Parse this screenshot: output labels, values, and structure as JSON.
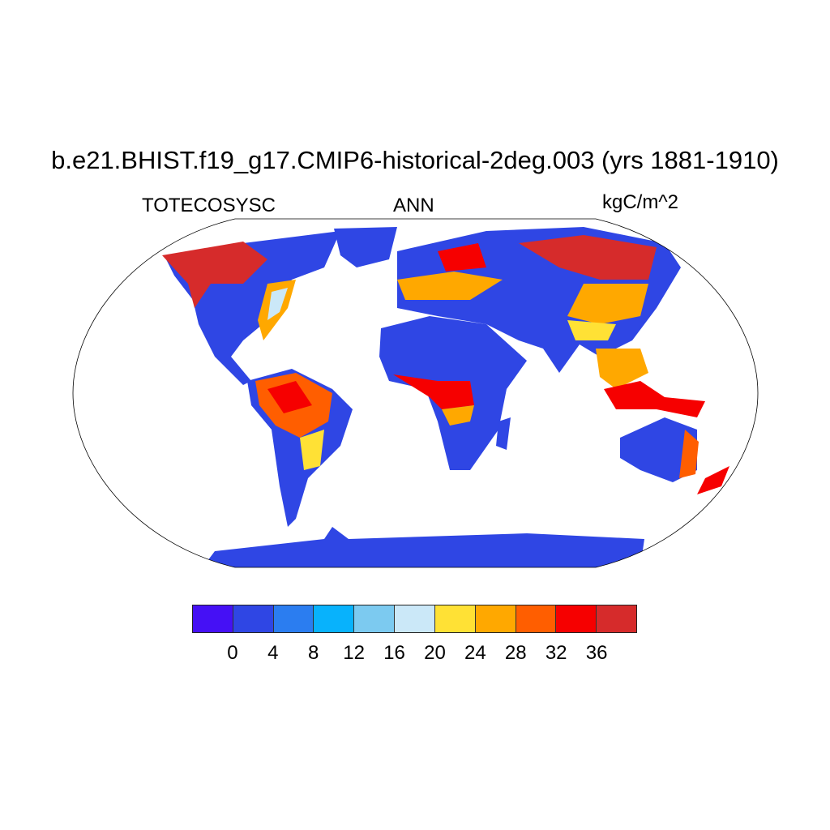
{
  "title": "b.e21.BHIST.f19_g17.CMIP6-historical-2deg.003 (yrs 1881-1910)",
  "left_label": "TOTECOSYSC",
  "center_label": "ANN",
  "right_label": "kgC/m^2",
  "map": {
    "projection": "Robinson",
    "variable": "TOTECOSYSC",
    "units": "kgC/m^2"
  },
  "colorbar": {
    "ticks": [
      "0",
      "4",
      "8",
      "12",
      "16",
      "20",
      "24",
      "28",
      "32",
      "36"
    ],
    "colors": [
      "#4510f5",
      "#2f46e4",
      "#2b7df0",
      "#08b2fc",
      "#7ccaf0",
      "#cbe8f8",
      "#ffe135",
      "#ffa800",
      "#ff5e00",
      "#f60000",
      "#d62b2b"
    ]
  }
}
